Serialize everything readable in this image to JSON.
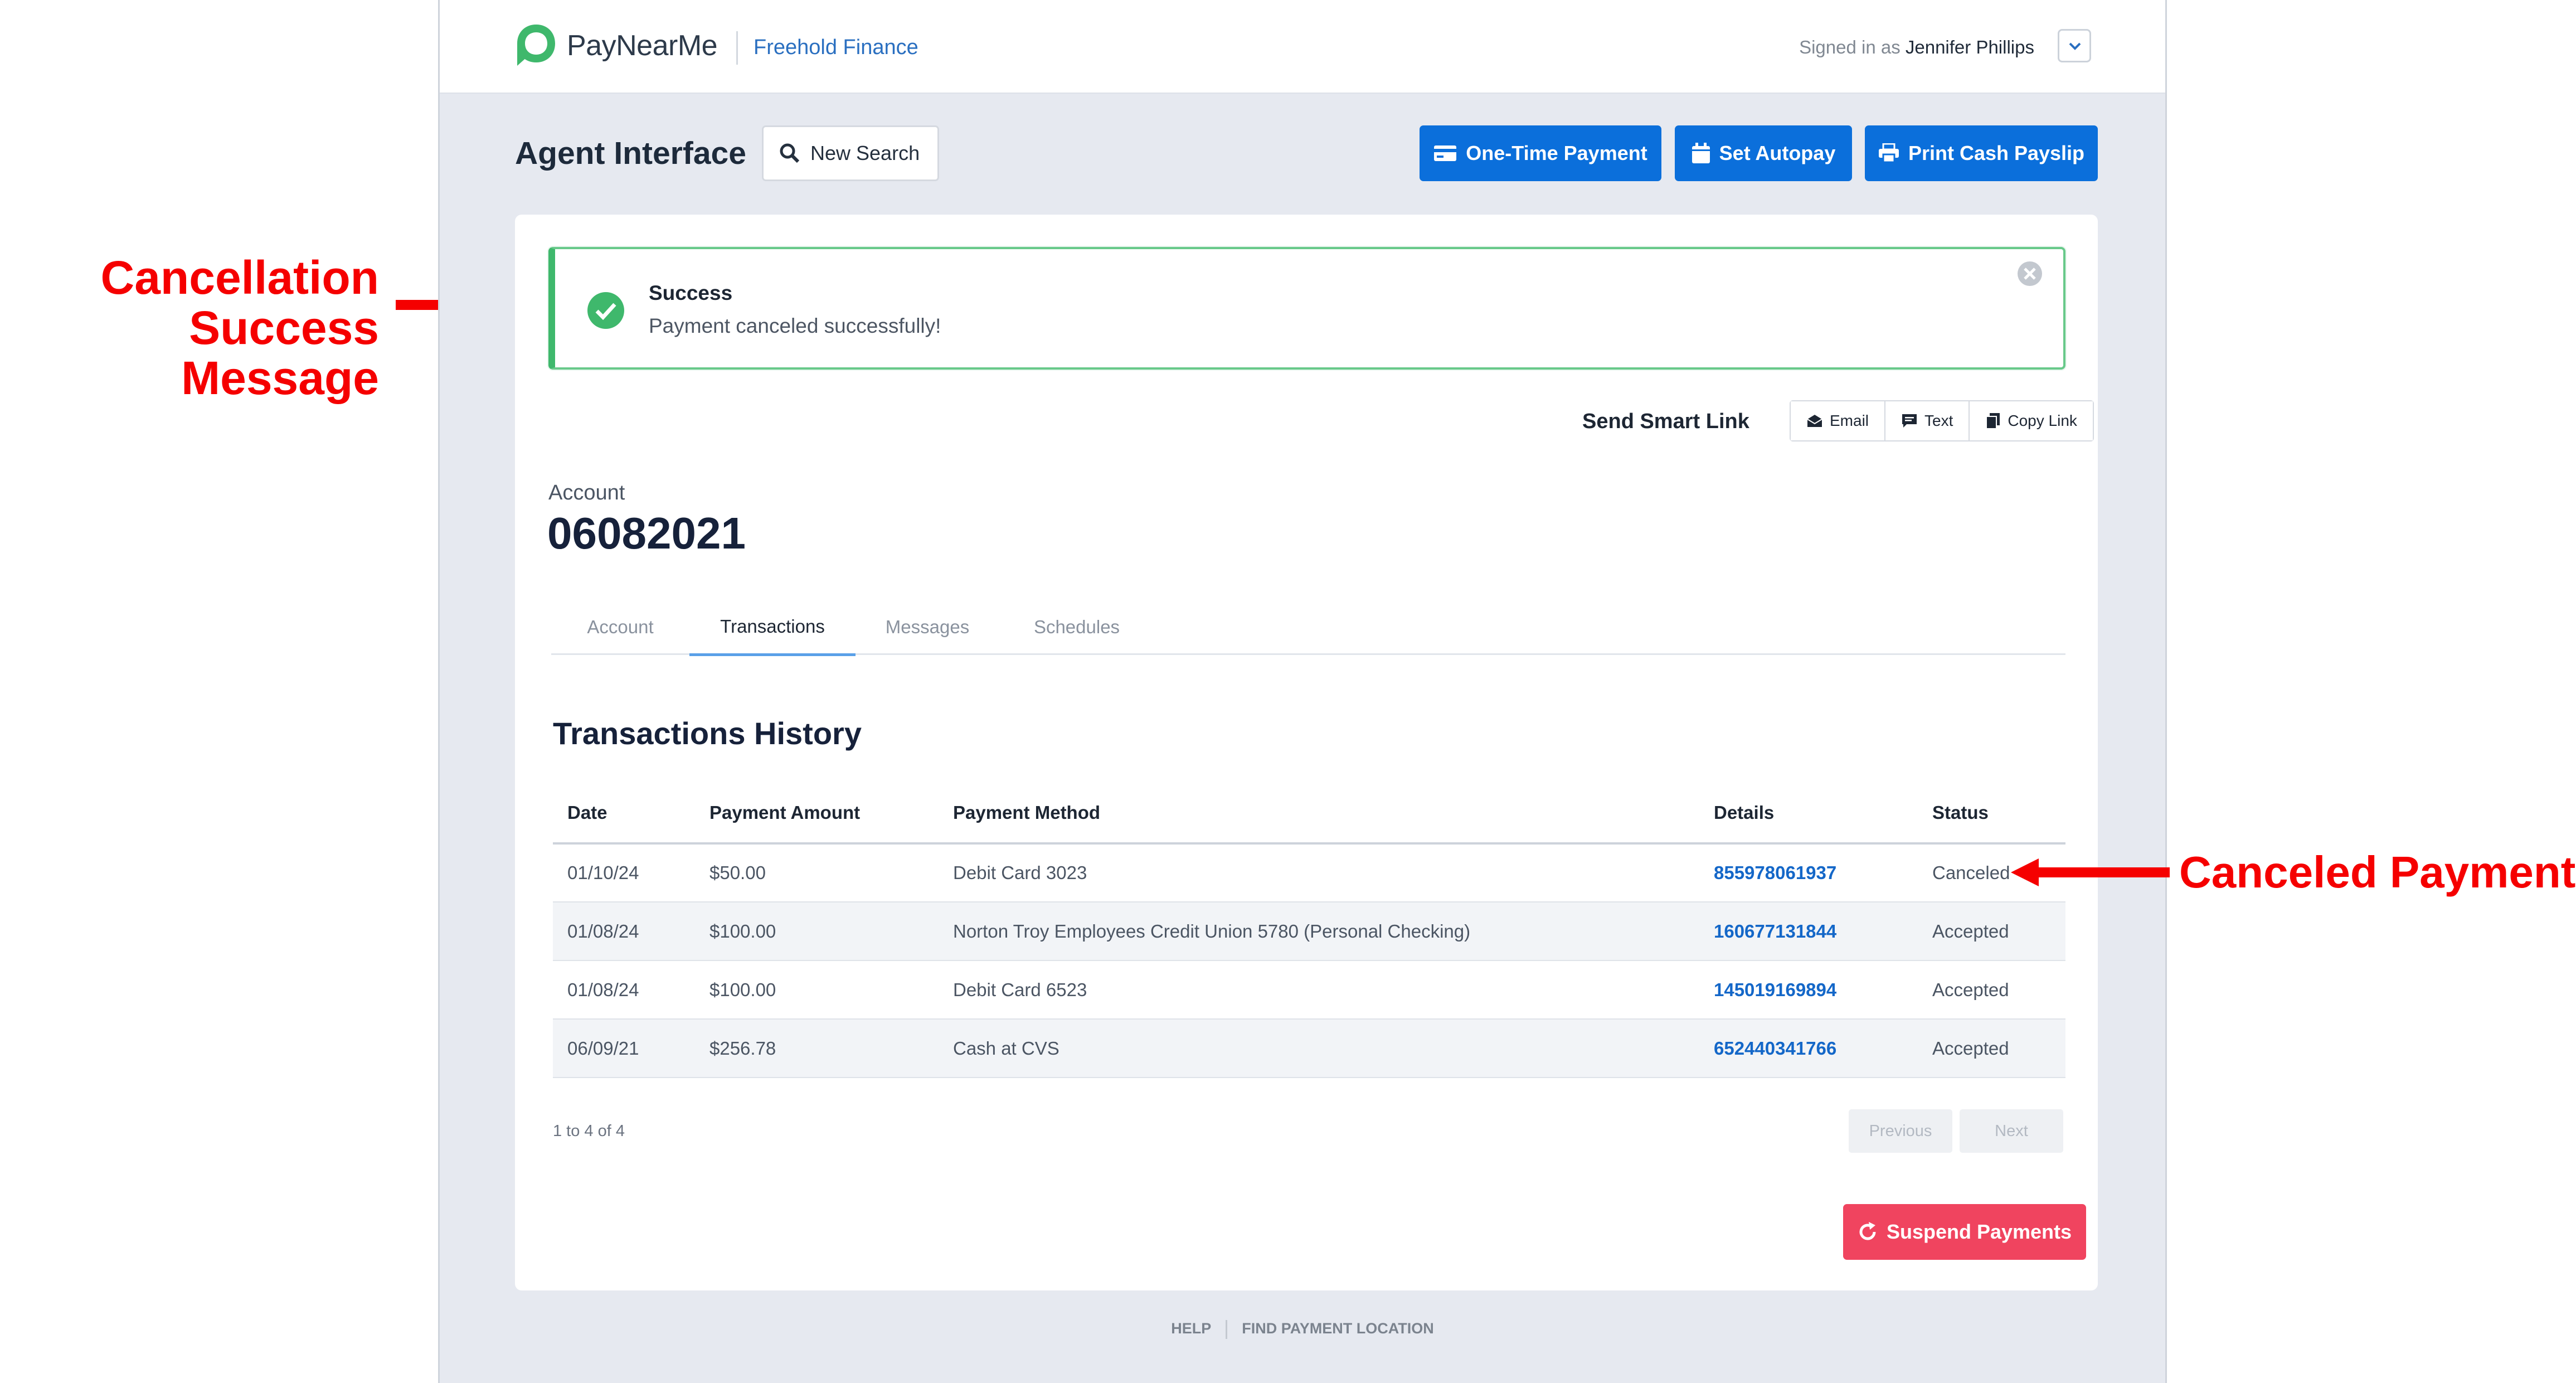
{
  "header": {
    "brand": "PayNearMe",
    "client": "Freehold Finance",
    "signed_in_prefix": "Signed in as",
    "user_name": "Jennifer Phillips"
  },
  "toolbar": {
    "title": "Agent Interface",
    "new_search": "New Search",
    "one_time_payment": "One-Time Payment",
    "set_autopay": "Set Autopay",
    "print_cash_payslip": "Print Cash Payslip"
  },
  "alert": {
    "title": "Success",
    "message": "Payment canceled successfully!"
  },
  "smart_link": {
    "label": "Send Smart Link",
    "email": "Email",
    "text": "Text",
    "copy": "Copy Link"
  },
  "account": {
    "label": "Account",
    "number": "06082021"
  },
  "tabs": [
    "Account",
    "Transactions",
    "Messages",
    "Schedules"
  ],
  "transactions": {
    "title": "Transactions History",
    "columns": [
      "Date",
      "Payment Amount",
      "Payment Method",
      "Details",
      "Status"
    ],
    "rows": [
      [
        "01/10/24",
        "$50.00",
        "Debit Card 3023",
        "855978061937",
        "Canceled"
      ],
      [
        "01/08/24",
        "$100.00",
        "Norton Troy Employees Credit Union 5780 (Personal Checking)",
        "160677131844",
        "Accepted"
      ],
      [
        "01/08/24",
        "$100.00",
        "Debit Card 6523",
        "145019169894",
        "Accepted"
      ],
      [
        "06/09/21",
        "$256.78",
        "Cash at CVS",
        "652440341766",
        "Accepted"
      ]
    ],
    "range": "1 to 4 of 4",
    "previous": "Previous",
    "next": "Next"
  },
  "suspend": "Suspend Payments",
  "footer": {
    "help": "HELP",
    "find": "FIND PAYMENT LOCATION"
  },
  "annotations": {
    "success_line1": "Cancellation",
    "success_line2": "Success Message",
    "canceled": "Canceled Payment"
  },
  "colors": {
    "primary": "#0b6fdb",
    "success": "#3fb86c",
    "danger": "#f0445f",
    "annotation": "#f50000"
  }
}
